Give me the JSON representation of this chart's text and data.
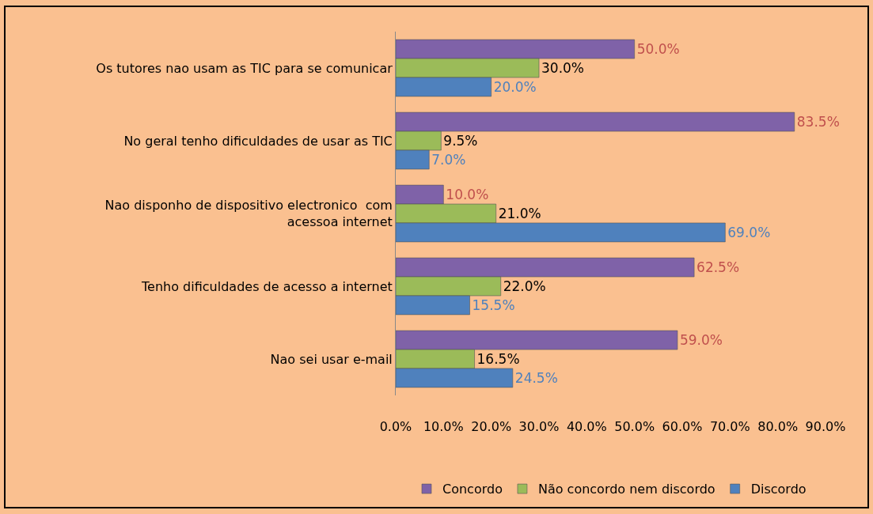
{
  "chart_data": {
    "type": "bar",
    "orientation": "horizontal",
    "categories": [
      "Os tutores nao usam as TIC para se comunicar",
      "No geral tenho dificuldades de usar as TIC",
      "Nao disponho de dispositivo electronico  com acessoa internet",
      "Tenho dificuldades de acesso a internet",
      "Nao sei usar e-mail"
    ],
    "series": [
      {
        "name": "Concordo",
        "color": "#7f62a8",
        "values": [
          50.0,
          83.5,
          10.0,
          62.5,
          59.0
        ],
        "value_labels": [
          "50.0%",
          "83.5%",
          "10.0%",
          "62.5%",
          "59.0%"
        ]
      },
      {
        "name": "Não concordo nem discordo",
        "color": "#9bbb59",
        "values": [
          30.0,
          9.5,
          21.0,
          22.0,
          16.5
        ],
        "value_labels": [
          "30.0%",
          "9.5%",
          "21.0%",
          "22.0%",
          "16.5%"
        ]
      },
      {
        "name": "Discordo",
        "color": "#4f81bd",
        "values": [
          20.0,
          7.0,
          69.0,
          15.5,
          24.5
        ],
        "value_labels": [
          "20.0%",
          "7.0%",
          "69.0%",
          "15.5%",
          "24.5%"
        ]
      }
    ],
    "xlim": [
      0,
      90
    ],
    "xticks": [
      {
        "value": 0,
        "label": "0.0%"
      },
      {
        "value": 10,
        "label": "10.0%"
      },
      {
        "value": 20,
        "label": "20.0%"
      },
      {
        "value": 30,
        "label": "30.0%"
      },
      {
        "value": 40,
        "label": "40.0%"
      },
      {
        "value": 50,
        "label": "50.0%"
      },
      {
        "value": 60,
        "label": "60.0%"
      },
      {
        "value": 70,
        "label": "70.0%"
      },
      {
        "value": 80,
        "label": "80.0%"
      },
      {
        "value": 90,
        "label": "90.0%"
      }
    ],
    "grid": false,
    "legend": "bottom"
  }
}
